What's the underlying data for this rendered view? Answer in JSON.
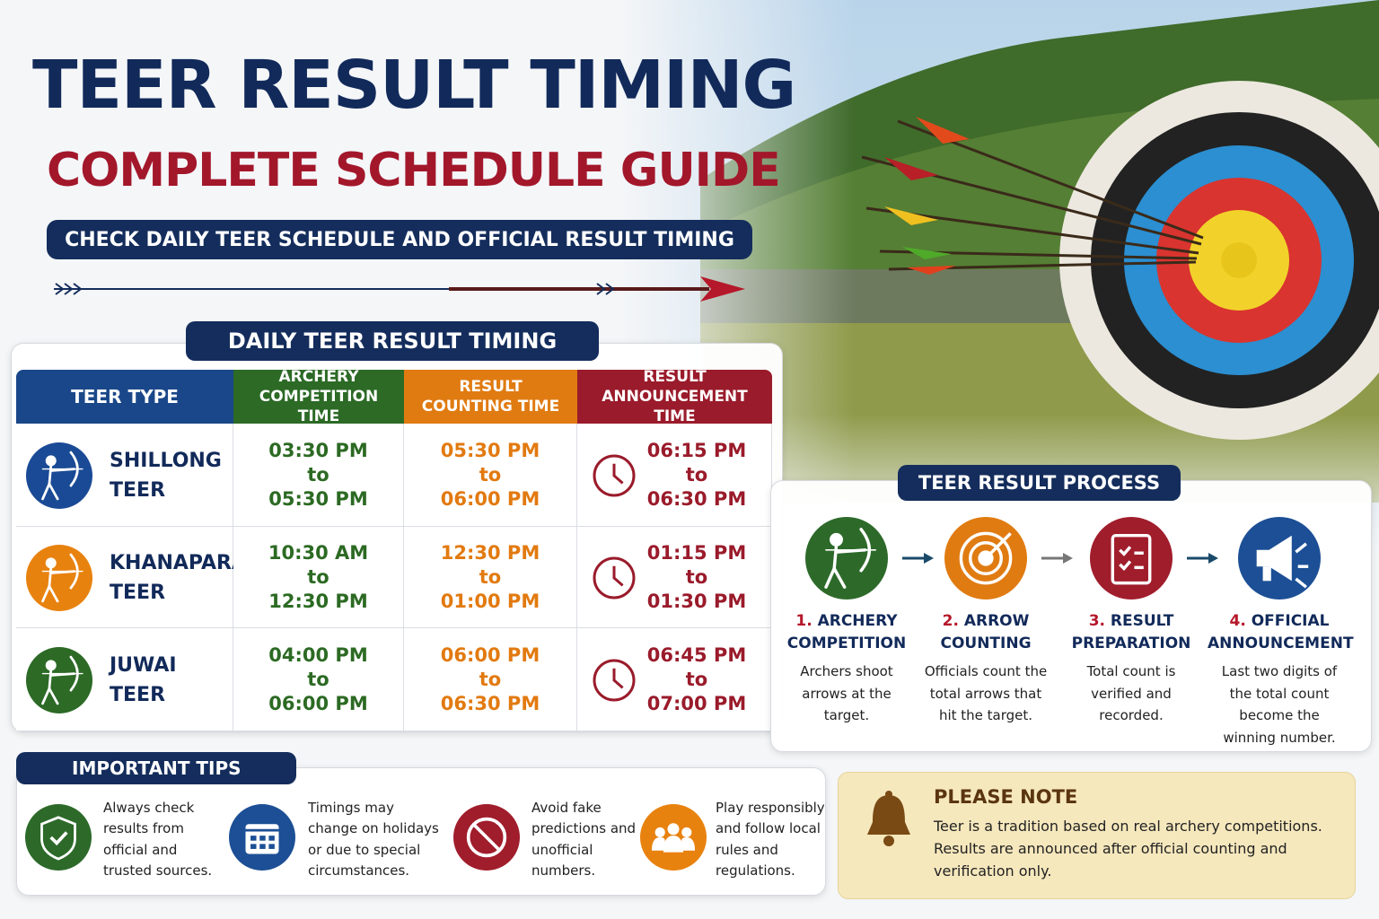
{
  "header": {
    "title": "TEER RESULT TIMING",
    "subtitle": "COMPLETE SCHEDULE GUIDE",
    "tagline": "CHECK DAILY TEER SCHEDULE AND OFFICIAL RESULT TIMING"
  },
  "table": {
    "title": "DAILY TEER RESULT TIMING",
    "columns": [
      "TEER TYPE",
      "ARCHERY COMPETITION TIME",
      "RESULT COUNTING TIME",
      "RESULT ANNOUNCEMENT TIME"
    ],
    "rows": [
      [
        "SHILLONG TEER",
        [
          "03:30 PM",
          "to",
          "05:30 PM"
        ],
        [
          "05:30 PM",
          "to",
          "06:00 PM"
        ],
        [
          "06:15 PM",
          "to",
          "06:30 PM"
        ]
      ],
      [
        "KHANAPARA TEER",
        [
          "10:30 AM",
          "to",
          "12:30 PM"
        ],
        [
          "12:30 PM",
          "to",
          "01:00 PM"
        ],
        [
          "01:15 PM",
          "to",
          "01:30 PM"
        ]
      ],
      [
        "JUWAI TEER",
        [
          "04:00 PM",
          "to",
          "06:00 PM"
        ],
        [
          "06:00 PM",
          "to",
          "06:30 PM"
        ],
        [
          "06:45 PM",
          "to",
          "07:00 PM"
        ]
      ]
    ]
  },
  "process": {
    "title": "TEER RESULT PROCESS",
    "steps": [
      {
        "number": "1.",
        "title": "ARCHERY COMPETITION",
        "text": "Archers shoot arrows at the target."
      },
      {
        "number": "2.",
        "title": "ARROW COUNTING",
        "text": "Officials count the total arrows that hit the target."
      },
      {
        "number": "3.",
        "title": "RESULT PREPARATION",
        "text": "Total count is verified and recorded."
      },
      {
        "number": "4.",
        "title": "OFFICIAL ANNOUNCEMENT",
        "text": "Last two digits of the total count become the winning number."
      }
    ]
  },
  "tips": {
    "title": "IMPORTANT TIPS",
    "items": [
      "Always check results from official and trusted sources.",
      "Timings may change on holidays or due to special circumstances.",
      "Avoid fake predictions and unofficial numbers.",
      "Play responsibly and follow local rules and regulations."
    ]
  },
  "note": {
    "title": "PLEASE NOTE",
    "text": "Teer is a tradition based on real archery competitions. Results are announced after official counting and verification only."
  }
}
